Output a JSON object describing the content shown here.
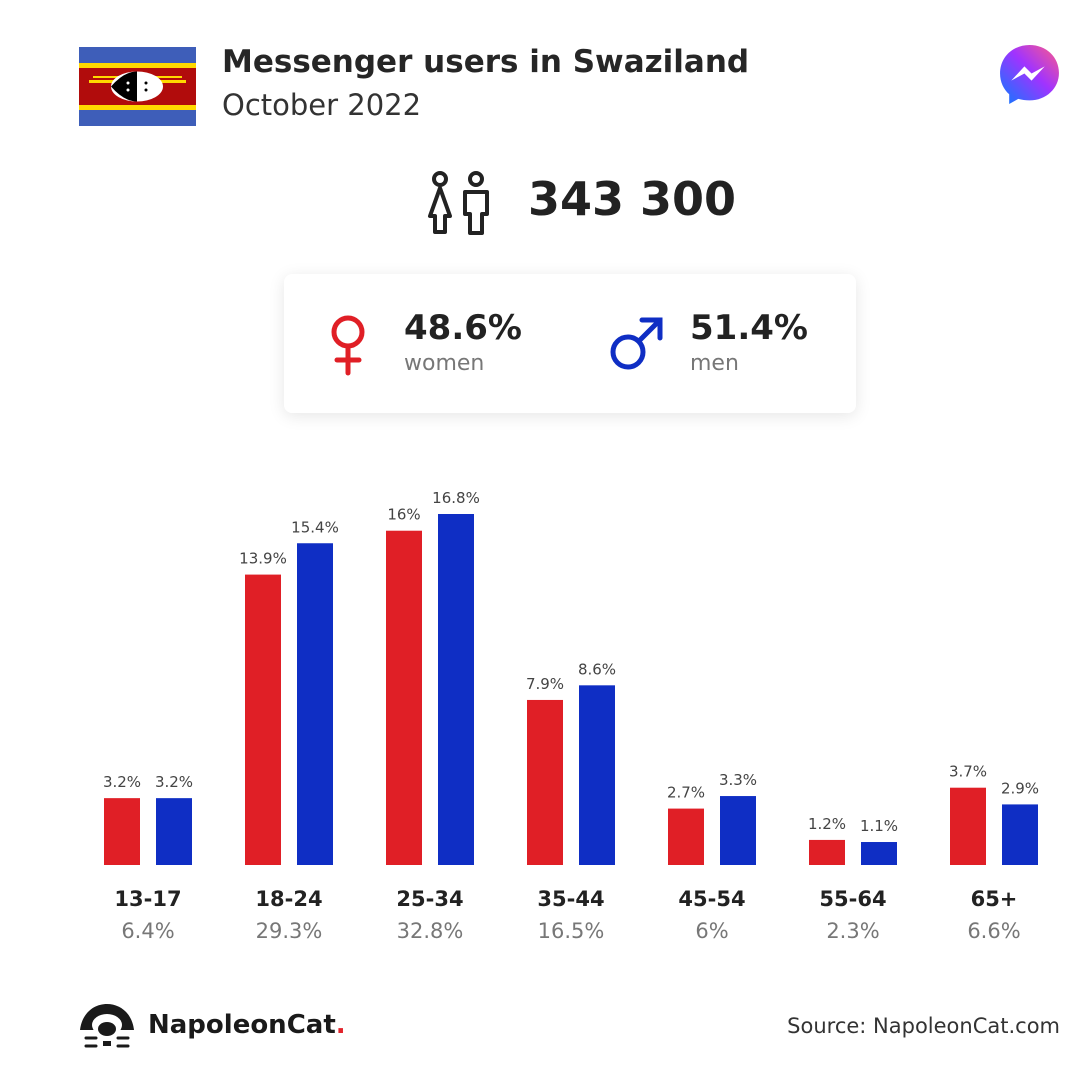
{
  "header": {
    "title": "Messenger users in Swaziland",
    "subtitle": "October 2022"
  },
  "summary": {
    "total_users": "343 300",
    "women_pct": "48.6%",
    "women_label": "women",
    "men_pct": "51.4%",
    "men_label": "men"
  },
  "footer": {
    "brand": "NapoleonCat",
    "brand_dot": ".",
    "source": "Source: NapoleonCat.com"
  },
  "colors": {
    "women": "#e01f26",
    "men": "#0f2ec4"
  },
  "icons": [
    "flag-of-swaziland",
    "messenger-logo-icon",
    "people-icon",
    "female-symbol-icon",
    "male-symbol-icon",
    "napoleoncat-logo-icon"
  ],
  "chart_data": {
    "type": "bar",
    "categories": [
      "13-17",
      "18-24",
      "25-34",
      "35-44",
      "45-54",
      "55-64",
      "65+"
    ],
    "category_totals": [
      "6.4%",
      "29.3%",
      "32.8%",
      "16.5%",
      "6%",
      "2.3%",
      "6.6%"
    ],
    "series": [
      {
        "name": "women",
        "values": [
          3.2,
          13.9,
          16,
          7.9,
          2.7,
          1.2,
          3.7
        ],
        "labels": [
          "3.2%",
          "13.9%",
          "16%",
          "7.9%",
          "2.7%",
          "1.2%",
          "3.7%"
        ]
      },
      {
        "name": "men",
        "values": [
          3.2,
          15.4,
          16.8,
          8.6,
          3.3,
          1.1,
          2.9
        ],
        "labels": [
          "3.2%",
          "15.4%",
          "16.8%",
          "8.6%",
          "3.3%",
          "1.1%",
          "2.9%"
        ]
      }
    ],
    "ylim": [
      0,
      16.8
    ],
    "grid": false,
    "data_labels": true
  }
}
